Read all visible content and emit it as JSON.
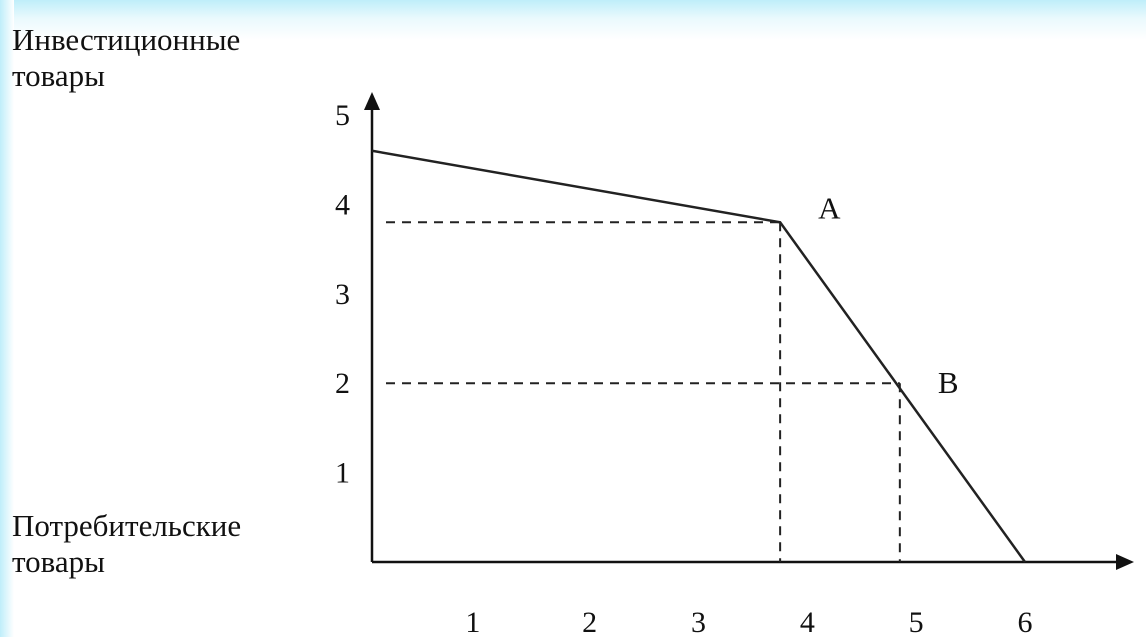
{
  "chart_data": {
    "type": "line",
    "ylabel_lines": [
      "Инвестиционные",
      "товары"
    ],
    "xlabel_lines": [
      "Потребительские",
      "товары"
    ],
    "x_ticks": [
      1,
      2,
      3,
      4,
      5,
      6
    ],
    "y_ticks": [
      1,
      2,
      3,
      4,
      5
    ],
    "series": [
      {
        "points": [
          {
            "x": 0,
            "y": 4.6
          },
          {
            "x": 3.75,
            "y": 3.8
          },
          {
            "x": 6,
            "y": 0
          }
        ]
      }
    ],
    "marked_points": [
      {
        "label": "A",
        "x": 3.75,
        "y": 3.8
      },
      {
        "label": "B",
        "x": 4.85,
        "y": 2
      }
    ],
    "xlim": [
      0,
      6.6
    ],
    "ylim": [
      0,
      5
    ],
    "grid": false,
    "line_color": "#222222"
  }
}
